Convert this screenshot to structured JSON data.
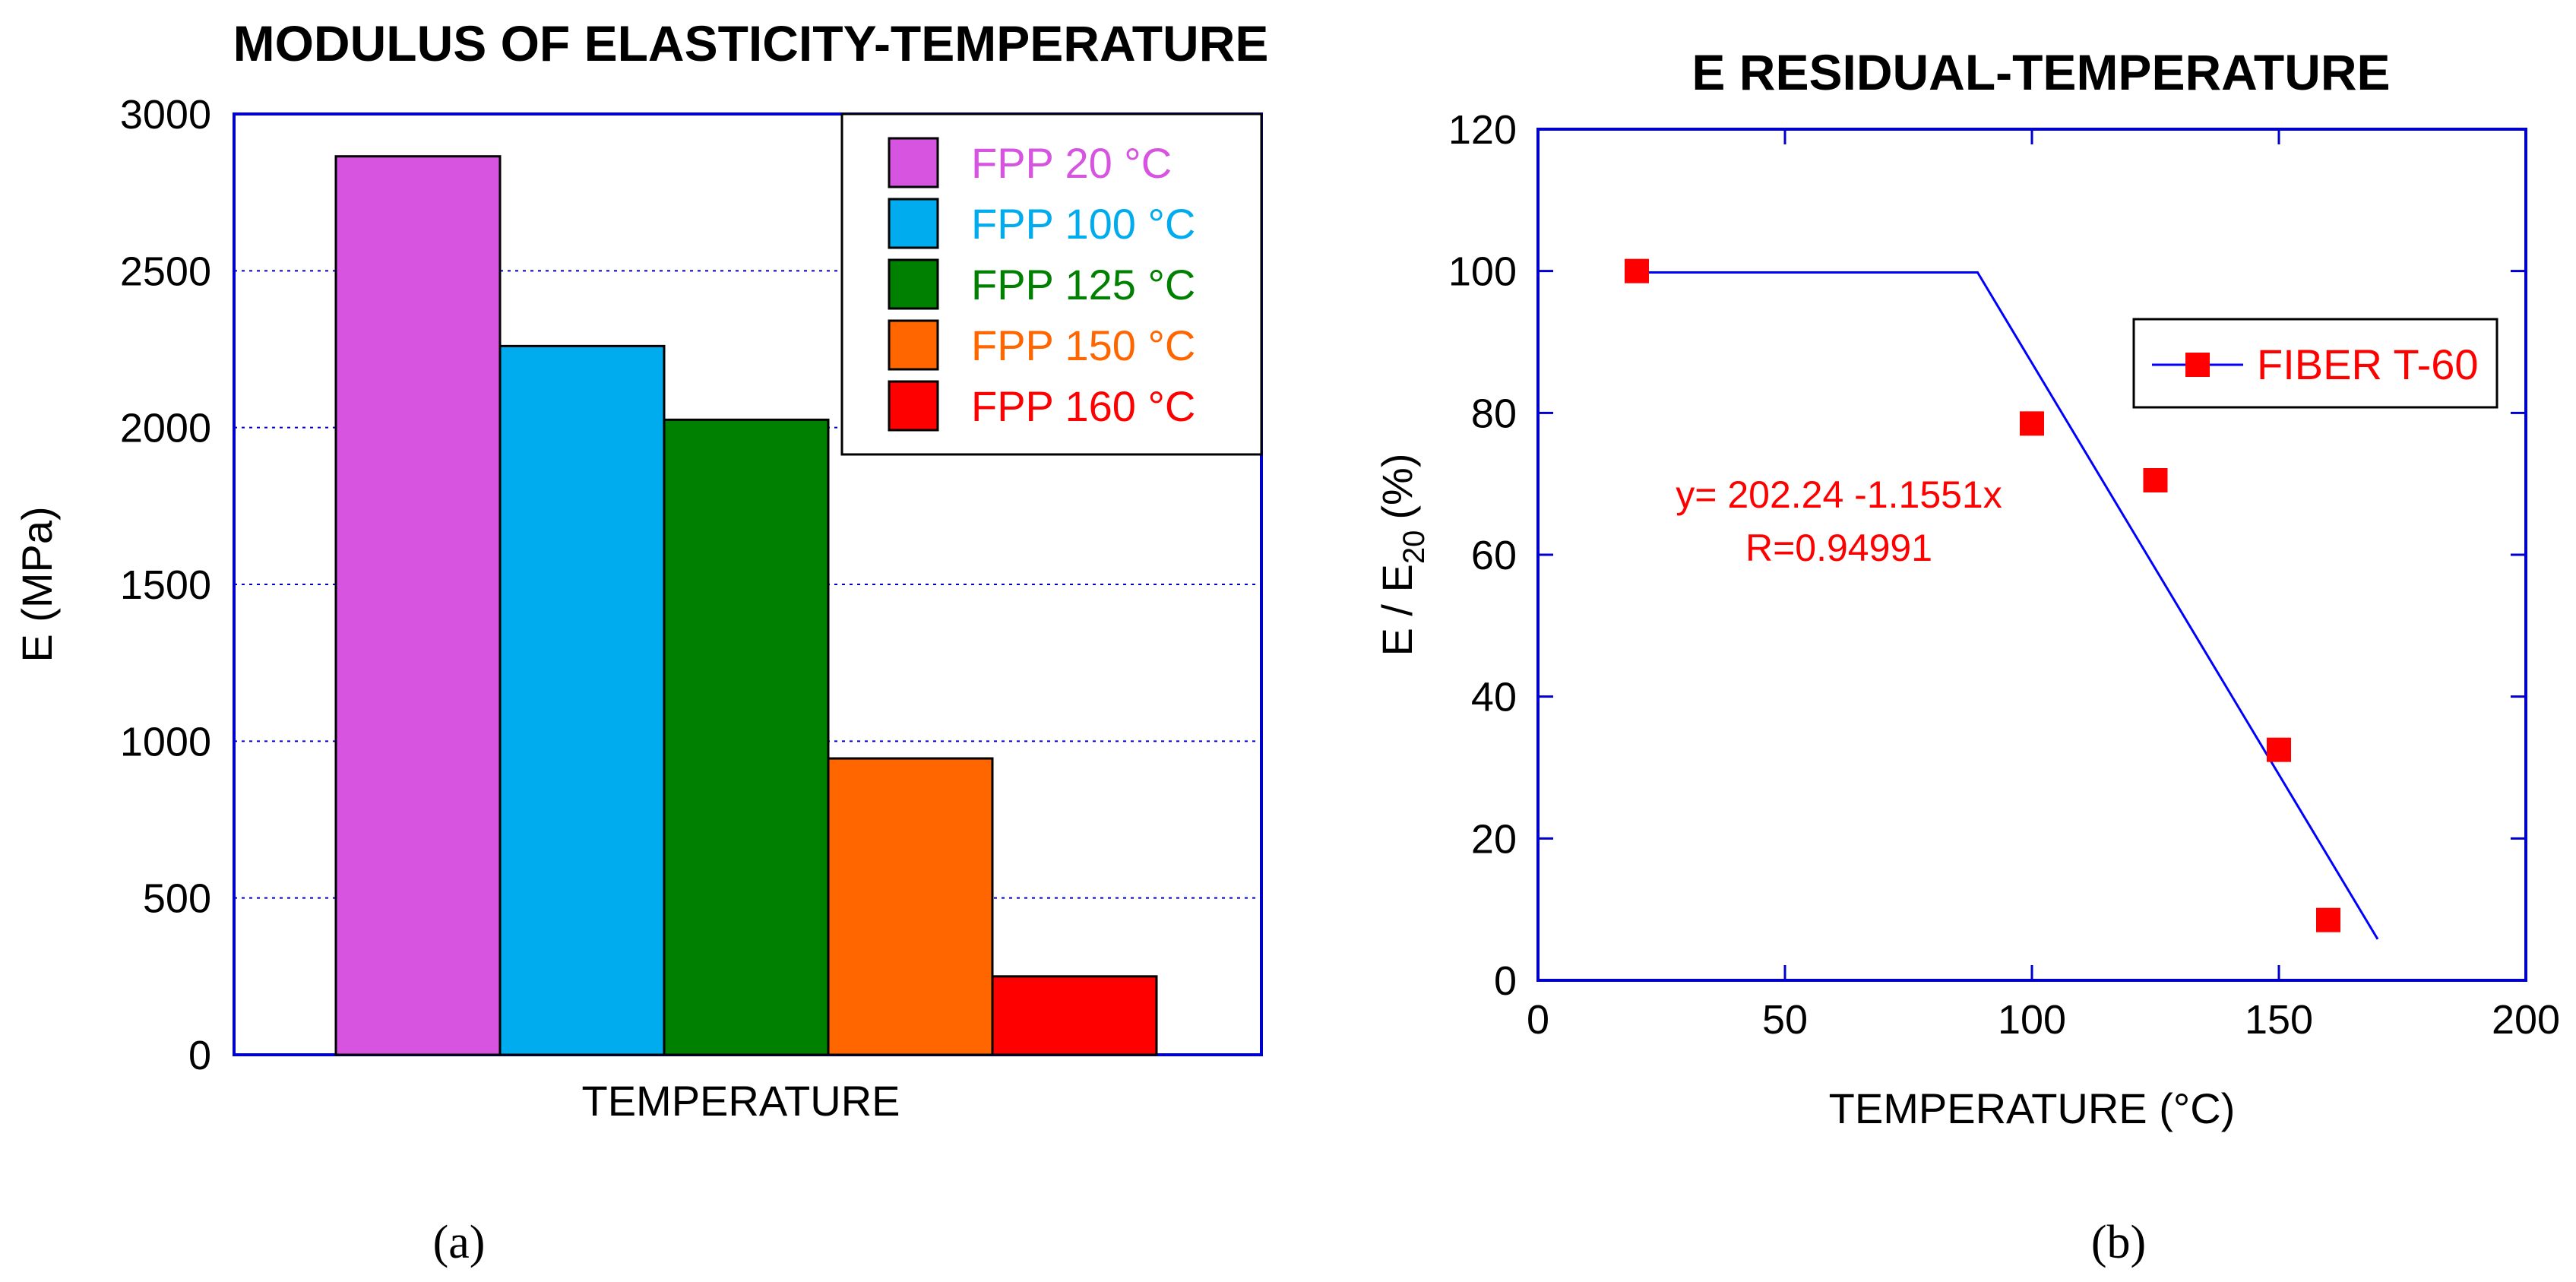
{
  "chart_data": [
    {
      "type": "bar",
      "title": "MODULUS OF ELASTICITY-TEMPERATURE",
      "xlabel": "TEMPERATURE",
      "ylabel": "E (MPa)",
      "ylim": [
        0,
        3000
      ],
      "yticks": [
        "0",
        "500",
        "1000",
        "1500",
        "2000",
        "2500",
        "3000"
      ],
      "grid": "horizontal dotted",
      "legend_position": "top-right",
      "series": [
        {
          "name": "FPP 20 °C",
          "value": 2865,
          "color": "#d654e0"
        },
        {
          "name": "FPP 100 °C",
          "value": 2260,
          "color": "#00aced"
        },
        {
          "name": "FPP 125 °C",
          "value": 2025,
          "color": "#008000"
        },
        {
          "name": "FPP 150 °C",
          "value": 945,
          "color": "#ff6600"
        },
        {
          "name": "FPP 160 °C",
          "value": 250,
          "color": "#ff0000"
        }
      ],
      "caption": "(a)"
    },
    {
      "type": "scatter",
      "title": "E RESIDUAL-TEMPERATURE",
      "xlabel": "TEMPERATURE (°C)",
      "ylabel_main": "E / E",
      "ylabel_sub": "20",
      "ylabel_unit": "(%)",
      "xlim": [
        0,
        200
      ],
      "ylim": [
        0,
        120
      ],
      "xticks": [
        "0",
        "50",
        "100",
        "150",
        "200"
      ],
      "yticks": [
        "0",
        "20",
        "40",
        "60",
        "80",
        "100",
        "120"
      ],
      "series": [
        {
          "name": "FIBER T-60",
          "color": "#ff0000",
          "x": [
            20,
            100,
            125,
            150,
            160
          ],
          "y": [
            100,
            78.5,
            70.5,
            32.5,
            8.5
          ]
        }
      ],
      "fit_line": {
        "color": "#0000ff",
        "x": [
          20,
          89,
          170
        ],
        "y": [
          99.8,
          99.8,
          5.8
        ]
      },
      "annotation_line1": "y= 202.24 -1.1551x",
      "annotation_line2": "R=0.94991",
      "legend_position": "top-right",
      "caption": "(b)"
    }
  ]
}
